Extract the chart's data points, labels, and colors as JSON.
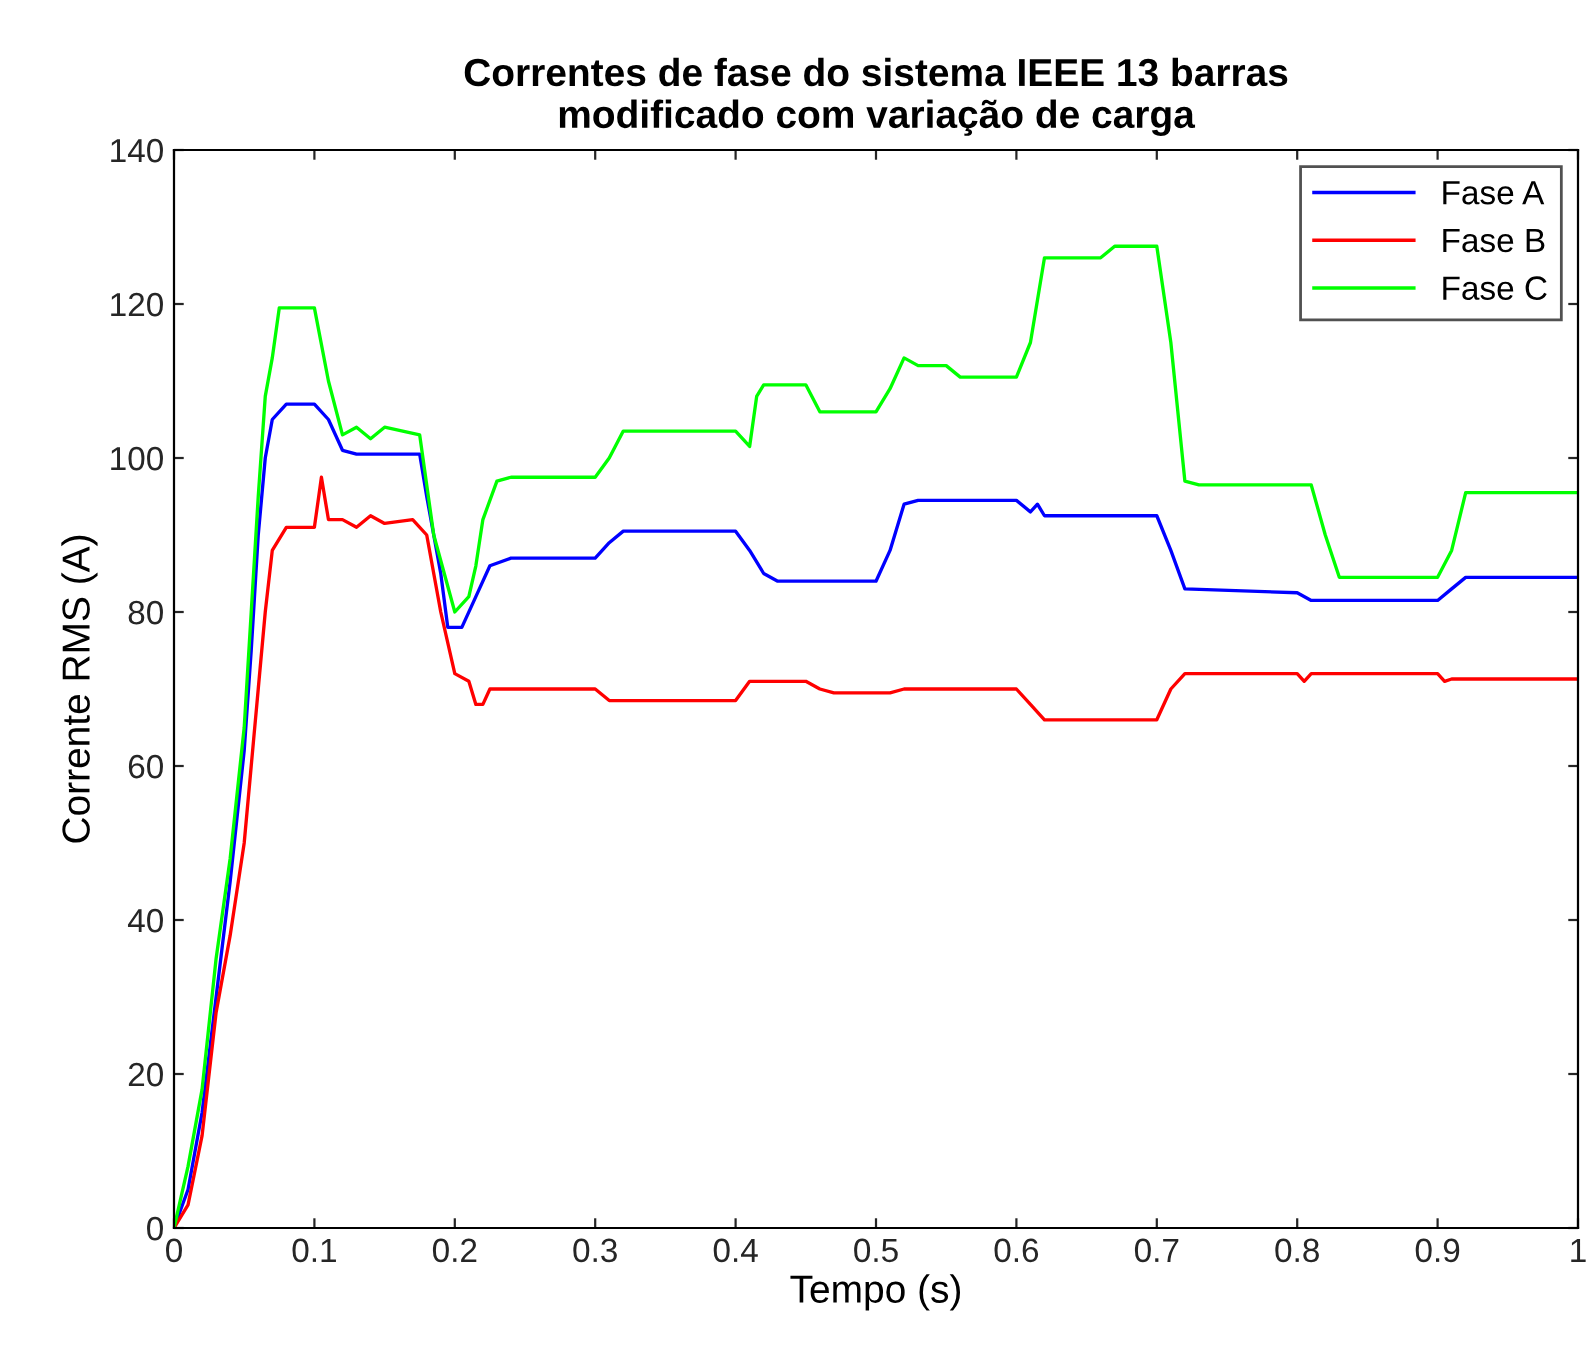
{
  "chart_data": {
    "type": "line",
    "title": "Correntes de fase do sistema IEEE 13 barras\nmodificado com variação de carga",
    "xlabel": "Tempo (s)",
    "ylabel": "Corrente RMS (A)",
    "xlim": [
      0,
      1
    ],
    "ylim": [
      0,
      140
    ],
    "xticks": [
      0,
      0.1,
      0.2,
      0.3,
      0.4,
      0.5,
      0.6,
      0.7,
      0.8,
      0.9,
      1
    ],
    "yticks": [
      0,
      20,
      40,
      60,
      80,
      100,
      120,
      140
    ],
    "grid": false,
    "legend": "top right",
    "line_style": "solid",
    "marker": "none",
    "series": [
      {
        "name": "Fase A",
        "color": "#0000ff",
        "x": [
          0,
          0.01,
          0.02,
          0.03,
          0.04,
          0.05,
          0.055,
          0.06,
          0.065,
          0.07,
          0.08,
          0.1,
          0.11,
          0.12,
          0.13,
          0.175,
          0.18,
          0.19,
          0.195,
          0.205,
          0.215,
          0.225,
          0.24,
          0.3,
          0.31,
          0.32,
          0.4,
          0.41,
          0.42,
          0.43,
          0.5,
          0.51,
          0.52,
          0.53,
          0.6,
          0.61,
          0.615,
          0.62,
          0.7,
          0.71,
          0.72,
          0.8,
          0.81,
          0.9,
          0.91,
          0.92,
          1.0
        ],
        "values": [
          0,
          5,
          15,
          30,
          45,
          62,
          75,
          90,
          100,
          105,
          107,
          107,
          105,
          101,
          100.5,
          100.5,
          95,
          85,
          78,
          78,
          82,
          86,
          87,
          87,
          89,
          90.5,
          90.5,
          88,
          85,
          84,
          84,
          88,
          94,
          94.5,
          94.5,
          93,
          94,
          92.5,
          92.5,
          88,
          83,
          82.5,
          81.5,
          81.5,
          83,
          84.5,
          84.5
        ]
      },
      {
        "name": "Fase B",
        "color": "#ff0000",
        "x": [
          0,
          0.01,
          0.02,
          0.03,
          0.04,
          0.05,
          0.055,
          0.06,
          0.065,
          0.07,
          0.08,
          0.1,
          0.105,
          0.11,
          0.12,
          0.13,
          0.14,
          0.15,
          0.17,
          0.18,
          0.19,
          0.2,
          0.21,
          0.215,
          0.22,
          0.225,
          0.3,
          0.31,
          0.4,
          0.41,
          0.45,
          0.46,
          0.47,
          0.51,
          0.52,
          0.6,
          0.61,
          0.62,
          0.7,
          0.71,
          0.72,
          0.8,
          0.805,
          0.81,
          0.9,
          0.905,
          0.91,
          1.0
        ],
        "values": [
          0,
          3,
          12,
          28,
          38,
          50,
          60,
          70,
          80,
          88,
          91,
          91,
          97.5,
          92,
          92,
          91,
          92.5,
          91.5,
          92,
          90,
          80,
          72,
          71,
          68,
          68,
          70,
          70,
          68.5,
          68.5,
          71,
          71,
          70,
          69.5,
          69.5,
          70,
          70,
          68,
          66,
          66,
          70,
          72,
          72,
          71,
          72,
          72,
          71,
          71.3,
          71.3
        ]
      },
      {
        "name": "Fase C",
        "color": "#00ff00",
        "x": [
          0,
          0.01,
          0.02,
          0.03,
          0.04,
          0.05,
          0.055,
          0.06,
          0.065,
          0.07,
          0.075,
          0.1,
          0.11,
          0.12,
          0.13,
          0.14,
          0.15,
          0.175,
          0.185,
          0.2,
          0.21,
          0.215,
          0.22,
          0.23,
          0.24,
          0.3,
          0.31,
          0.32,
          0.4,
          0.41,
          0.415,
          0.42,
          0.45,
          0.46,
          0.5,
          0.51,
          0.52,
          0.53,
          0.55,
          0.56,
          0.6,
          0.61,
          0.62,
          0.66,
          0.67,
          0.7,
          0.71,
          0.72,
          0.73,
          0.81,
          0.82,
          0.83,
          0.9,
          0.91,
          0.92,
          1.0
        ],
        "values": [
          0,
          8,
          18,
          35,
          48,
          65,
          80,
          95,
          108,
          113,
          119.5,
          119.5,
          110,
          103,
          104,
          102.5,
          104,
          103,
          90,
          80,
          82,
          86,
          92,
          97,
          97.5,
          97.5,
          100,
          103.5,
          103.5,
          101.5,
          108,
          109.5,
          109.5,
          106,
          106,
          109,
          113,
          112,
          112,
          110.5,
          110.5,
          115,
          126,
          126,
          127.5,
          127.5,
          115,
          97,
          96.5,
          96.5,
          90,
          84.5,
          84.5,
          88,
          95.5,
          95.5
        ]
      }
    ]
  }
}
